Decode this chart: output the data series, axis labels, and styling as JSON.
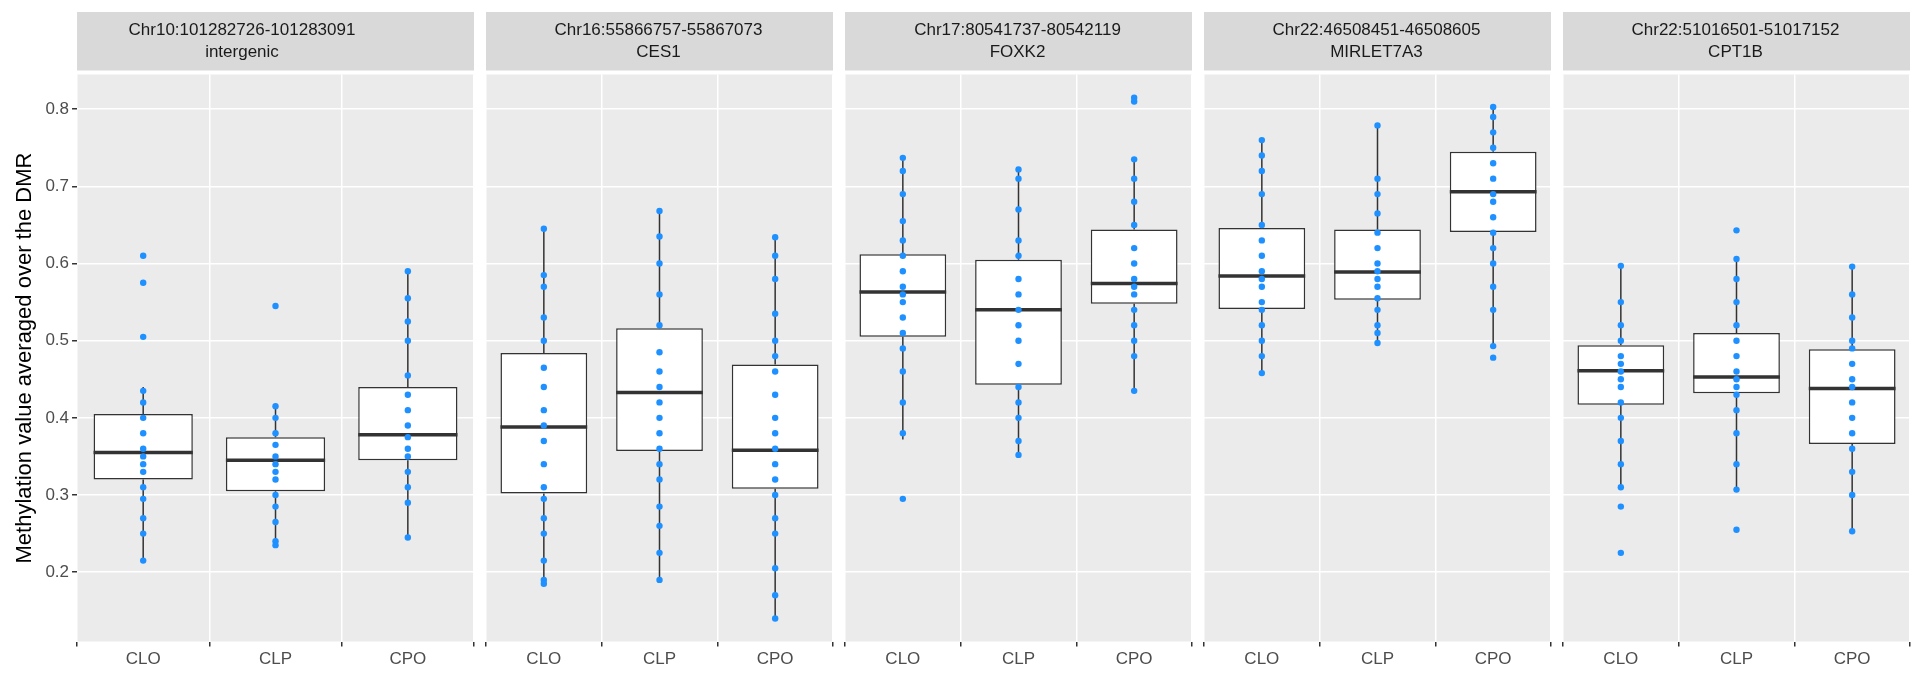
{
  "chart_data": [
    {
      "type": "box",
      "title": "Chr10:101282726-101283091\nintergenic",
      "ylabel": "Methylation value averaged over the DMR",
      "categories": [
        "CLO",
        "CLP",
        "CPO"
      ],
      "ylim": [
        0.11,
        0.845
      ],
      "yticks": [
        0.2,
        0.3,
        0.4,
        0.5,
        0.6,
        0.7,
        0.8
      ],
      "grid": true,
      "marker": "circle",
      "boxes": [
        {
          "low": 0.215,
          "q1": 0.32,
          "median": 0.355,
          "q3": 0.405,
          "high": 0.44
        },
        {
          "low": 0.235,
          "q1": 0.305,
          "median": 0.345,
          "q3": 0.375,
          "high": 0.415
        },
        {
          "low": 0.245,
          "q1": 0.345,
          "median": 0.378,
          "q3": 0.44,
          "high": 0.59
        }
      ],
      "series": [
        {
          "type": "scatter",
          "color": "#1e90ff",
          "x": [
            "CLO",
            "CLO",
            "CLO",
            "CLO",
            "CLO",
            "CLO",
            "CLO",
            "CLO",
            "CLO",
            "CLO",
            "CLO",
            "CLO",
            "CLO",
            "CLO",
            "CLO",
            "CLO",
            "CLP",
            "CLP",
            "CLP",
            "CLP",
            "CLP",
            "CLP",
            "CLP",
            "CLP",
            "CLP",
            "CLP",
            "CLP",
            "CLP",
            "CLP",
            "CLP",
            "CPO",
            "CPO",
            "CPO",
            "CPO",
            "CPO",
            "CPO",
            "CPO",
            "CPO",
            "CPO",
            "CPO",
            "CPO",
            "CPO",
            "CPO",
            "CPO",
            "CPO"
          ],
          "values": [
            0.61,
            0.575,
            0.505,
            0.435,
            0.42,
            0.4,
            0.38,
            0.36,
            0.35,
            0.34,
            0.33,
            0.31,
            0.295,
            0.27,
            0.25,
            0.215,
            0.545,
            0.415,
            0.4,
            0.38,
            0.365,
            0.35,
            0.34,
            0.33,
            0.32,
            0.3,
            0.285,
            0.265,
            0.24,
            0.235,
            0.59,
            0.555,
            0.525,
            0.5,
            0.455,
            0.43,
            0.41,
            0.39,
            0.375,
            0.36,
            0.35,
            0.33,
            0.31,
            0.29,
            0.245
          ]
        }
      ]
    },
    {
      "type": "box",
      "title": "Chr16:55866757-55867073\nCES1",
      "categories": [
        "CLO",
        "CLP",
        "CPO"
      ],
      "ylim": [
        0.11,
        0.845
      ],
      "yticks": [
        0.2,
        0.3,
        0.4,
        0.5,
        0.6,
        0.7,
        0.8
      ],
      "grid": true,
      "marker": "circle",
      "tick_labels": "x",
      "boxes": [
        {
          "low": 0.185,
          "q1": 0.302,
          "median": 0.388,
          "q3": 0.484,
          "high": 0.645
        },
        {
          "low": 0.188,
          "q1": 0.357,
          "median": 0.433,
          "q3": 0.516,
          "high": 0.668
        },
        {
          "low": 0.138,
          "q1": 0.308,
          "median": 0.358,
          "q3": 0.469,
          "high": 0.634
        }
      ],
      "series": [
        {
          "type": "scatter",
          "color": "#1e90ff",
          "x": [
            "CLO",
            "CLO",
            "CLO",
            "CLO",
            "CLO",
            "CLO",
            "CLO",
            "CLO",
            "CLO",
            "CLO",
            "CLO",
            "CLO",
            "CLO",
            "CLO",
            "CLO",
            "CLO",
            "CLO",
            "CLO",
            "CLP",
            "CLP",
            "CLP",
            "CLP",
            "CLP",
            "CLP",
            "CLP",
            "CLP",
            "CLP",
            "CLP",
            "CLP",
            "CLP",
            "CLP",
            "CLP",
            "CLP",
            "CLP",
            "CLP",
            "CLP",
            "CPO",
            "CPO",
            "CPO",
            "CPO",
            "CPO",
            "CPO",
            "CPO",
            "CPO",
            "CPO",
            "CPO",
            "CPO",
            "CPO",
            "CPO",
            "CPO",
            "CPO",
            "CPO",
            "CPO",
            "CPO",
            "CPO"
          ],
          "values": [
            0.645,
            0.585,
            0.57,
            0.53,
            0.5,
            0.465,
            0.44,
            0.41,
            0.39,
            0.37,
            0.34,
            0.31,
            0.295,
            0.27,
            0.25,
            0.215,
            0.19,
            0.185,
            0.668,
            0.635,
            0.6,
            0.56,
            0.52,
            0.485,
            0.46,
            0.44,
            0.42,
            0.4,
            0.38,
            0.36,
            0.34,
            0.32,
            0.285,
            0.26,
            0.225,
            0.19,
            0.634,
            0.61,
            0.58,
            0.535,
            0.5,
            0.48,
            0.46,
            0.43,
            0.4,
            0.38,
            0.36,
            0.34,
            0.32,
            0.3,
            0.27,
            0.25,
            0.205,
            0.17,
            0.14
          ]
        }
      ]
    },
    {
      "type": "box",
      "title": "Chr17:80541737-80542119\nFOXK2",
      "categories": [
        "CLO",
        "CLP",
        "CPO"
      ],
      "ylim": [
        0.11,
        0.845
      ],
      "yticks": [
        0.2,
        0.3,
        0.4,
        0.5,
        0.6,
        0.7,
        0.8
      ],
      "grid": true,
      "marker": "circle",
      "tick_labels": "x",
      "boxes": [
        {
          "low": 0.372,
          "q1": 0.505,
          "median": 0.563,
          "q3": 0.612,
          "high": 0.737
        },
        {
          "low": 0.352,
          "q1": 0.443,
          "median": 0.54,
          "q3": 0.605,
          "high": 0.722
        },
        {
          "low": 0.435,
          "q1": 0.548,
          "median": 0.574,
          "q3": 0.644,
          "high": 0.735
        }
      ],
      "series": [
        {
          "type": "scatter",
          "color": "#1e90ff",
          "x": [
            "CLO",
            "CLO",
            "CLO",
            "CLO",
            "CLO",
            "CLO",
            "CLO",
            "CLO",
            "CLO",
            "CLO",
            "CLO",
            "CLO",
            "CLO",
            "CLO",
            "CLO",
            "CLO",
            "CLO",
            "CLP",
            "CLP",
            "CLP",
            "CLP",
            "CLP",
            "CLP",
            "CLP",
            "CLP",
            "CLP",
            "CLP",
            "CLP",
            "CLP",
            "CLP",
            "CLP",
            "CLP",
            "CLP",
            "CPO",
            "CPO",
            "CPO",
            "CPO",
            "CPO",
            "CPO",
            "CPO",
            "CPO",
            "CPO",
            "CPO",
            "CPO",
            "CPO",
            "CPO",
            "CPO",
            "CPO",
            "CPO"
          ],
          "values": [
            0.737,
            0.72,
            0.69,
            0.655,
            0.63,
            0.61,
            0.59,
            0.57,
            0.56,
            0.55,
            0.53,
            0.51,
            0.49,
            0.46,
            0.42,
            0.38,
            0.295,
            0.722,
            0.71,
            0.67,
            0.63,
            0.61,
            0.58,
            0.56,
            0.54,
            0.52,
            0.5,
            0.47,
            0.44,
            0.42,
            0.4,
            0.37,
            0.352,
            0.815,
            0.81,
            0.735,
            0.71,
            0.68,
            0.65,
            0.62,
            0.6,
            0.58,
            0.57,
            0.56,
            0.54,
            0.52,
            0.5,
            0.48,
            0.435
          ]
        }
      ]
    },
    {
      "type": "box",
      "title": "Chr22:46508451-46508605\nMIRLET7A3",
      "categories": [
        "CLO",
        "CLP",
        "CPO"
      ],
      "ylim": [
        0.11,
        0.845
      ],
      "yticks": [
        0.2,
        0.3,
        0.4,
        0.5,
        0.6,
        0.7,
        0.8
      ],
      "grid": true,
      "marker": "circle",
      "tick_labels": "x",
      "boxes": [
        {
          "low": 0.458,
          "q1": 0.541,
          "median": 0.584,
          "q3": 0.646,
          "high": 0.76
        },
        {
          "low": 0.497,
          "q1": 0.553,
          "median": 0.589,
          "q3": 0.644,
          "high": 0.779
        },
        {
          "low": 0.493,
          "q1": 0.641,
          "median": 0.693,
          "q3": 0.745,
          "high": 0.803
        }
      ],
      "series": [
        {
          "type": "scatter",
          "color": "#1e90ff",
          "x": [
            "CLO",
            "CLO",
            "CLO",
            "CLO",
            "CLO",
            "CLO",
            "CLO",
            "CLO",
            "CLO",
            "CLO",
            "CLO",
            "CLO",
            "CLO",
            "CLO",
            "CLO",
            "CLO",
            "CLP",
            "CLP",
            "CLP",
            "CLP",
            "CLP",
            "CLP",
            "CLP",
            "CLP",
            "CLP",
            "CLP",
            "CLP",
            "CLP",
            "CLP",
            "CLP",
            "CLP",
            "CPO",
            "CPO",
            "CPO",
            "CPO",
            "CPO",
            "CPO",
            "CPO",
            "CPO",
            "CPO",
            "CPO",
            "CPO",
            "CPO",
            "CPO",
            "CPO",
            "CPO",
            "CPO"
          ],
          "values": [
            0.76,
            0.74,
            0.72,
            0.69,
            0.65,
            0.63,
            0.61,
            0.59,
            0.58,
            0.57,
            0.55,
            0.54,
            0.52,
            0.5,
            0.48,
            0.458,
            0.779,
            0.71,
            0.69,
            0.665,
            0.64,
            0.62,
            0.6,
            0.59,
            0.58,
            0.57,
            0.555,
            0.54,
            0.52,
            0.51,
            0.497,
            0.803,
            0.79,
            0.77,
            0.75,
            0.73,
            0.71,
            0.69,
            0.68,
            0.66,
            0.64,
            0.62,
            0.6,
            0.57,
            0.54,
            0.493,
            0.478
          ]
        }
      ]
    },
    {
      "type": "box",
      "title": "Chr22:51016501-51017152\nCPT1B",
      "categories": [
        "CLO",
        "CLP",
        "CPO"
      ],
      "ylim": [
        0.11,
        0.845
      ],
      "yticks": [
        0.2,
        0.3,
        0.4,
        0.5,
        0.6,
        0.7,
        0.8
      ],
      "grid": true,
      "marker": "circle",
      "tick_labels": "x",
      "boxes": [
        {
          "low": 0.31,
          "q1": 0.417,
          "median": 0.461,
          "q3": 0.494,
          "high": 0.597
        },
        {
          "low": 0.307,
          "q1": 0.432,
          "median": 0.453,
          "q3": 0.51,
          "high": 0.606
        },
        {
          "low": 0.253,
          "q1": 0.366,
          "median": 0.438,
          "q3": 0.489,
          "high": 0.596
        }
      ],
      "series": [
        {
          "type": "scatter",
          "color": "#1e90ff",
          "x": [
            "CLO",
            "CLO",
            "CLO",
            "CLO",
            "CLO",
            "CLO",
            "CLO",
            "CLO",
            "CLO",
            "CLO",
            "CLO",
            "CLO",
            "CLO",
            "CLO",
            "CLO",
            "CLO",
            "CLP",
            "CLP",
            "CLP",
            "CLP",
            "CLP",
            "CLP",
            "CLP",
            "CLP",
            "CLP",
            "CLP",
            "CLP",
            "CLP",
            "CLP",
            "CLP",
            "CLP",
            "CLP",
            "CPO",
            "CPO",
            "CPO",
            "CPO",
            "CPO",
            "CPO",
            "CPO",
            "CPO",
            "CPO",
            "CPO",
            "CPO",
            "CPO",
            "CPO",
            "CPO",
            "CPO"
          ],
          "values": [
            0.597,
            0.55,
            0.52,
            0.5,
            0.48,
            0.47,
            0.46,
            0.45,
            0.44,
            0.42,
            0.4,
            0.37,
            0.34,
            0.31,
            0.285,
            0.225,
            0.643,
            0.606,
            0.58,
            0.55,
            0.52,
            0.5,
            0.48,
            0.46,
            0.45,
            0.44,
            0.43,
            0.41,
            0.38,
            0.34,
            0.307,
            0.255,
            0.596,
            0.56,
            0.53,
            0.5,
            0.49,
            0.47,
            0.45,
            0.44,
            0.42,
            0.4,
            0.38,
            0.36,
            0.33,
            0.3,
            0.253
          ]
        }
      ]
    }
  ]
}
